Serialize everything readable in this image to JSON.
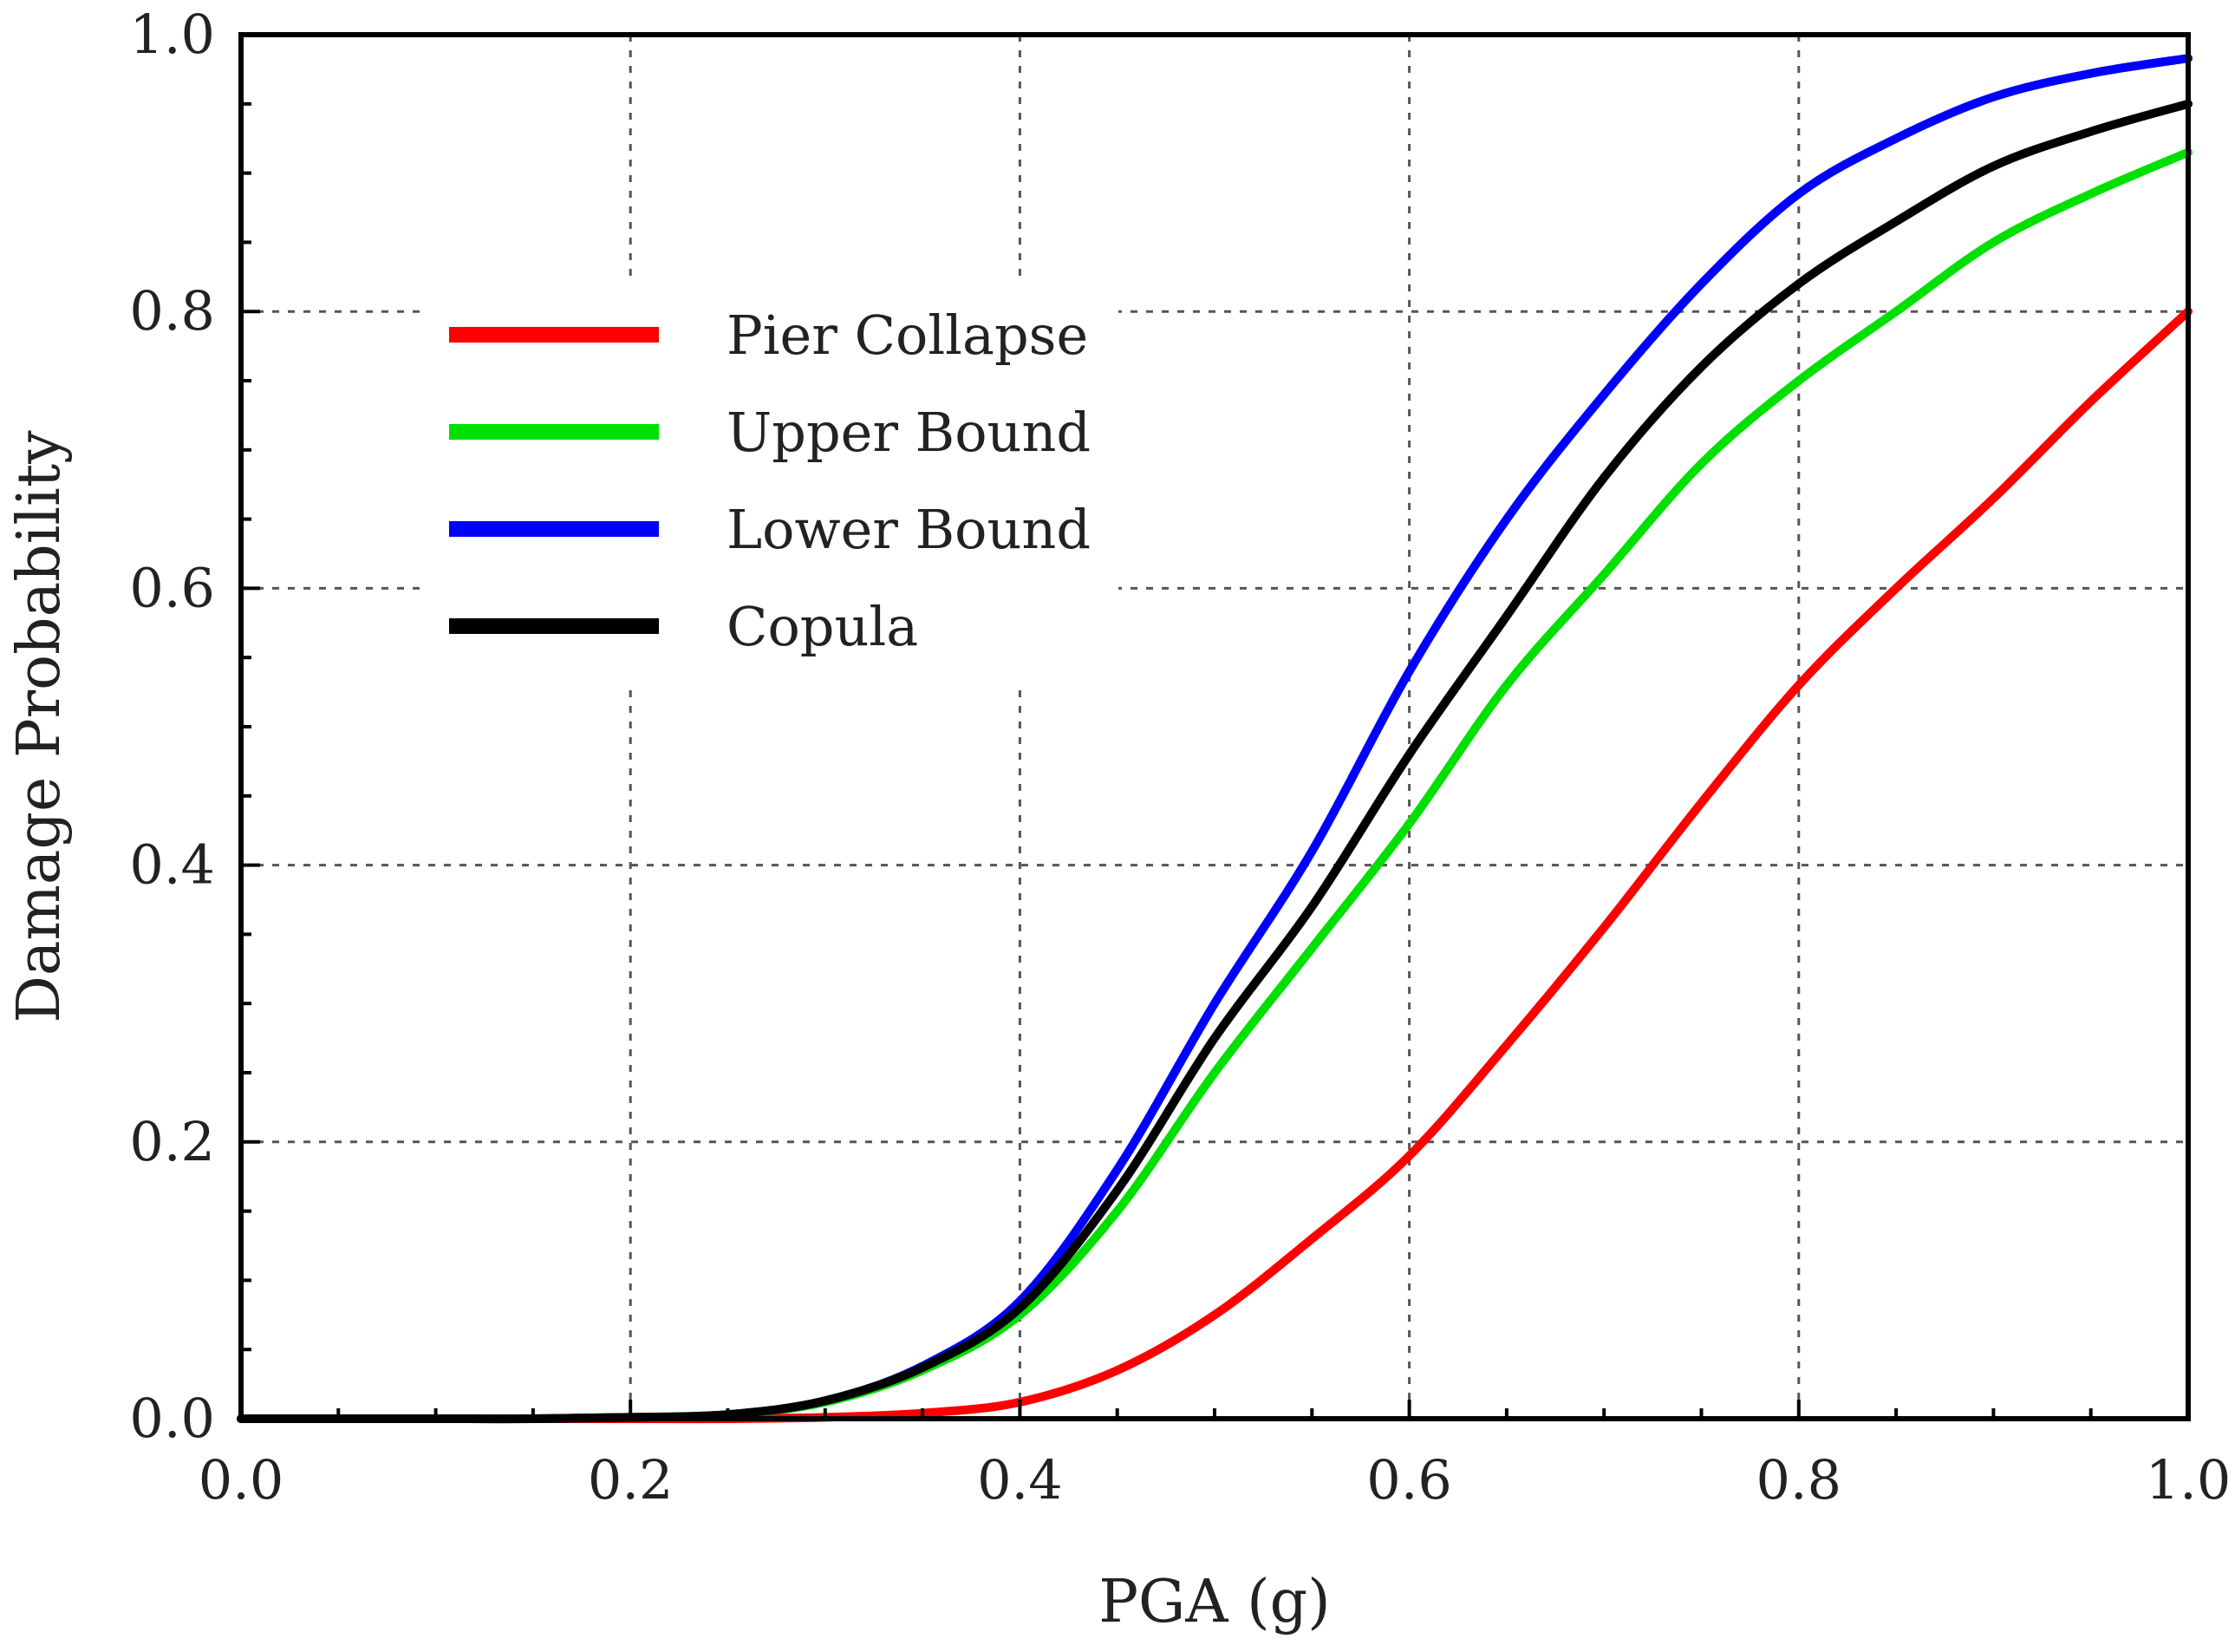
{
  "chart_data": {
    "type": "line",
    "title": "",
    "xlabel": "PGA (g)",
    "ylabel": "Damage Probability",
    "xlim": [
      0.0,
      1.0
    ],
    "ylim": [
      0.0,
      1.0
    ],
    "grid": true,
    "legend_position": "top-left",
    "x_ticks": [
      "0.0",
      "0.2",
      "0.4",
      "0.6",
      "0.8",
      "1.0"
    ],
    "y_ticks": [
      "0.0",
      "0.2",
      "0.4",
      "0.6",
      "0.8",
      "1.0"
    ],
    "x": [
      0.0,
      0.05,
      0.1,
      0.15,
      0.2,
      0.25,
      0.3,
      0.35,
      0.4,
      0.45,
      0.5,
      0.55,
      0.6,
      0.65,
      0.7,
      0.75,
      0.8,
      0.85,
      0.9,
      0.95,
      1.0
    ],
    "series": [
      {
        "name": "Pier Collapse",
        "color": "#ff0000",
        "values": [
          0.0,
          0.0,
          0.0,
          0.0,
          0.0,
          0.0,
          0.001,
          0.004,
          0.012,
          0.035,
          0.075,
          0.13,
          0.19,
          0.27,
          0.355,
          0.445,
          0.53,
          0.6,
          0.665,
          0.735,
          0.8
        ]
      },
      {
        "name": "Upper Bound",
        "color": "#00e000",
        "values": [
          0.0,
          0.0,
          0.0,
          0.0,
          0.001,
          0.003,
          0.012,
          0.035,
          0.075,
          0.15,
          0.25,
          0.34,
          0.43,
          0.53,
          0.61,
          0.69,
          0.75,
          0.8,
          0.85,
          0.885,
          0.915
        ]
      },
      {
        "name": "Lower Bound",
        "color": "#0000ff",
        "values": [
          0.0,
          0.0,
          0.0,
          0.0,
          0.001,
          0.003,
          0.013,
          0.038,
          0.085,
          0.18,
          0.3,
          0.41,
          0.54,
          0.65,
          0.74,
          0.82,
          0.885,
          0.925,
          0.955,
          0.972,
          0.983
        ]
      },
      {
        "name": "Copula",
        "color": "#000000",
        "values": [
          0.0,
          0.0,
          0.0,
          0.0,
          0.001,
          0.003,
          0.013,
          0.037,
          0.08,
          0.165,
          0.275,
          0.37,
          0.48,
          0.58,
          0.68,
          0.76,
          0.82,
          0.865,
          0.905,
          0.93,
          0.95
        ]
      }
    ]
  }
}
